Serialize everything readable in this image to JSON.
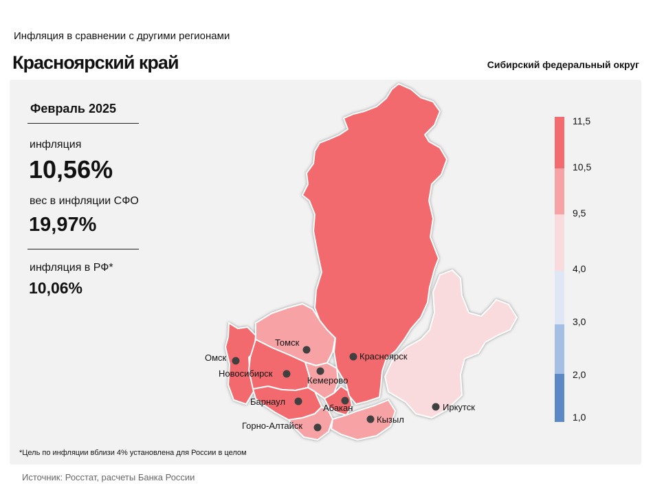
{
  "header": {
    "subtitle": "Инфляция  в сравнении  с другими  регионами",
    "title": "Красноярский край",
    "district": "Сибирский федеральный округ"
  },
  "stats": {
    "month": "Февраль 2025",
    "inflation_label": "инфляция",
    "inflation_value": "10,56%",
    "weight_label": "вес в инфляции  СФО",
    "weight_value": "19,97%",
    "rf_label": "инфляция  в РФ*",
    "rf_value": "10,06%"
  },
  "legend": {
    "ticks": [
      "11,5",
      "10,5",
      "9,5",
      "4,0",
      "3,0",
      "2,0",
      "1,0"
    ],
    "colors": [
      "#f36b6e",
      "#f7a3a6",
      "#fadbdd",
      "#dfe6f5",
      "#a4bfe3",
      "#5c89c5"
    ]
  },
  "cities": [
    {
      "name": "Омск",
      "color": "#f36b6e"
    },
    {
      "name": "Томск",
      "color": "#f7a3a6"
    },
    {
      "name": "Новосибирск",
      "color": "#f36b6e"
    },
    {
      "name": "Кемерово",
      "color": "#f7a3a6"
    },
    {
      "name": "Красноярск",
      "color": "#f36b6e"
    },
    {
      "name": "Барнаул",
      "color": "#f36b6e"
    },
    {
      "name": "Абакан",
      "color": "#f36b6e"
    },
    {
      "name": "Горно-Алтайск",
      "color": "#f7a3a6"
    },
    {
      "name": "Кызыл",
      "color": "#f7a3a6"
    },
    {
      "name": "Иркутск",
      "color": "#fadbdd"
    }
  ],
  "footnote": "*Цель по инфляции вблизи 4% установлена для России в целом",
  "source": "Источник: Росстат, расчеты Банка России"
}
